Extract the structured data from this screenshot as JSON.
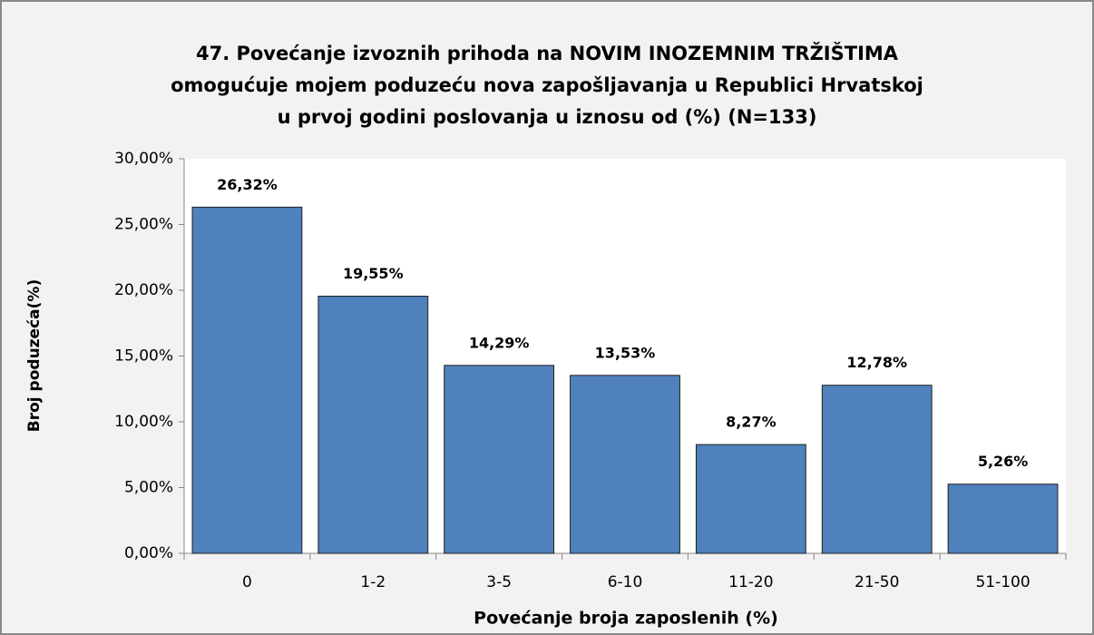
{
  "chart_data": {
    "type": "bar",
    "title": [
      "47. Povećanje izvoznih prihoda na NOVIM INOZEMNIM TRŽIŠTIMA",
      "omogućuje mojem poduzeću nova zapošljavanja u Republici Hrvatskoj",
      "u prvoj godini poslovanja u iznosu od (%) (N=133)"
    ],
    "x_label": "Povećanje broja zaposlenih (%)",
    "y_label": "Broj poduzeća(%)",
    "categories": [
      "0",
      "1-2",
      "3-5",
      "6-10",
      "11-20",
      "21-50",
      "51-100"
    ],
    "values": [
      26.32,
      19.55,
      14.29,
      13.53,
      8.27,
      12.78,
      5.26
    ],
    "value_labels": [
      "26,32%",
      "19,55%",
      "14,29%",
      "13,53%",
      "8,27%",
      "12,78%",
      "5,26%"
    ],
    "color": "#4f81bd",
    "ylim": [
      0,
      30
    ],
    "yticks": [
      {
        "value": 0,
        "label": "0,00%"
      },
      {
        "value": 5,
        "label": "5,00%"
      },
      {
        "value": 10,
        "label": "10,00%"
      },
      {
        "value": 15,
        "label": "15,00%"
      },
      {
        "value": 20,
        "label": "20,00%"
      },
      {
        "value": 25,
        "label": "25,00%"
      },
      {
        "value": 30,
        "label": "30,00%"
      }
    ],
    "grid": false
  }
}
